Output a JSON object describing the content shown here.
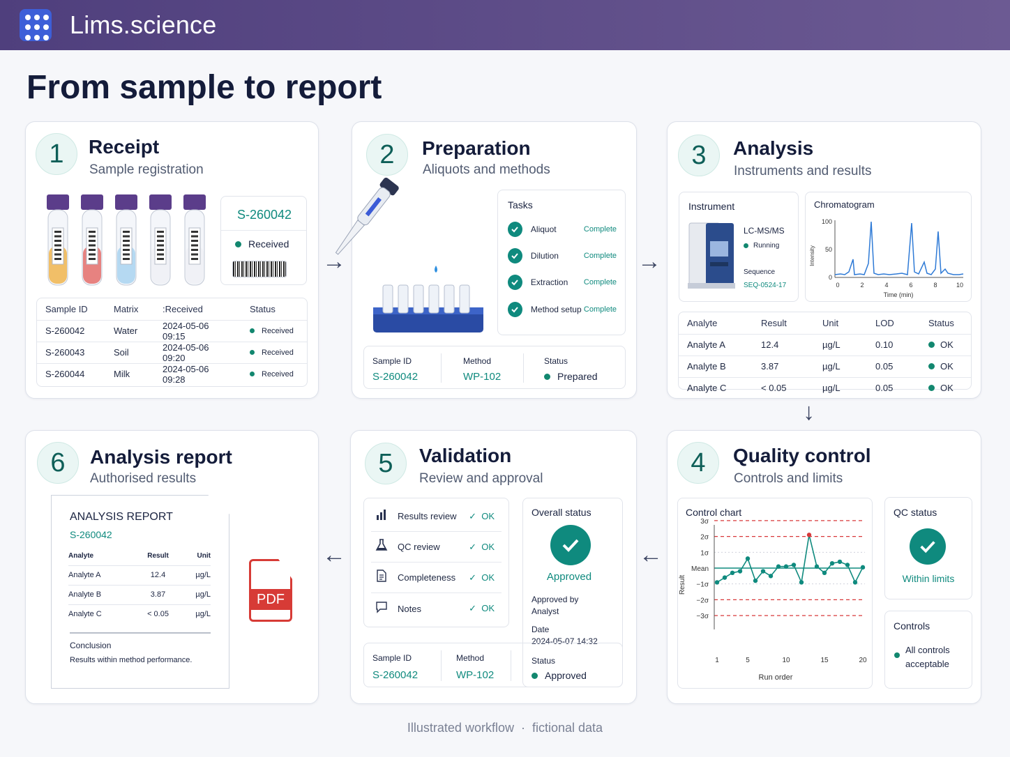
{
  "app": {
    "title": "Lims.science",
    "icon": "grid-icon"
  },
  "page": {
    "title": "From sample to report"
  },
  "receipt": {
    "num": "1",
    "title": "Receipt",
    "subtitle": "Sample registration",
    "tag": {
      "id": "S-260042",
      "status": "Received"
    },
    "tube_colors": [
      "#f0b54d",
      "#e46d6a",
      "#a9d3f0",
      "#eef0f4",
      "#eef0f4"
    ],
    "table": {
      "headers": [
        "Sample ID",
        "Matrix",
        ":Received",
        "Status"
      ],
      "rows": [
        [
          "S-260042",
          "Water",
          "2024-05-06 09:15",
          "Received"
        ],
        [
          "S-260043",
          "Soil",
          "2024-05-06 09:20",
          "Received"
        ],
        [
          "S-260044",
          "Milk",
          "2024-05-06 09:28",
          "Received"
        ]
      ]
    }
  },
  "preparation": {
    "num": "2",
    "title": "Preparation",
    "subtitle": "Aliquots and methods",
    "tasks_title": "Tasks",
    "tasks": [
      {
        "label": "Aliquot",
        "status": "Complete"
      },
      {
        "label": "Dilution",
        "status": "Complete"
      },
      {
        "label": "Extraction",
        "status": "Complete"
      },
      {
        "label": "Method setup",
        "status": "Complete"
      }
    ],
    "info": {
      "sample_label": "Sample ID",
      "sample_value": "S-260042",
      "method_label": "Method",
      "method_value": "WP-102",
      "status_label": "Status",
      "status_value": "Prepared"
    }
  },
  "analysis": {
    "num": "3",
    "title": "Analysis",
    "subtitle": "Instruments and results",
    "instrument": {
      "title": "Instrument",
      "name": "LC-MS/MS",
      "state": "Running",
      "seq_label": "Sequence",
      "seq_value": "SEQ-0524-17"
    },
    "chromatogram": {
      "title": "Chromatogram",
      "ylabel": "Intensity",
      "xlabel": "Time (min)",
      "yticks": [
        "100",
        "50",
        "0"
      ],
      "xticks": [
        "0",
        "2",
        "4",
        "6",
        "8",
        "10"
      ]
    },
    "table": {
      "headers": [
        "Analyte",
        "Result",
        "Unit",
        "LOD",
        "Status"
      ],
      "rows": [
        [
          "Analyte A",
          "12.4",
          "µg/L",
          "0.10",
          "OK"
        ],
        [
          "Analyte B",
          "3.87",
          "µg/L",
          "0.05",
          "OK"
        ],
        [
          "Analyte C",
          "< 0.05",
          "µg/L",
          "0.05",
          "OK"
        ]
      ]
    }
  },
  "qc": {
    "num": "4",
    "title": "Quality control",
    "subtitle": "Controls and limits",
    "chart": {
      "title": "Control chart",
      "ylabel": "Result",
      "xlabel": "Run order",
      "yticks": [
        "3σ",
        "2σ",
        "1σ",
        "Mean",
        "−1σ",
        "−2σ",
        "−3σ"
      ],
      "xticks": [
        "1",
        "5",
        "10",
        "15",
        "20"
      ],
      "values": [
        -0.9,
        -0.6,
        -0.3,
        -0.2,
        0.6,
        -0.8,
        -0.2,
        -0.5,
        0.1,
        0.1,
        0.2,
        -0.9,
        2.1,
        0.1,
        -0.3,
        0.3,
        0.4,
        0.2,
        -0.9,
        0.05
      ],
      "out_of_control_index": 12
    },
    "status": {
      "title": "QC status",
      "value": "Within limits"
    },
    "controls": {
      "title": "Controls",
      "value": "All controls acceptable"
    }
  },
  "validation": {
    "num": "5",
    "title": "Validation",
    "subtitle": "Review and approval",
    "checks": [
      {
        "icon": "bar-chart-icon",
        "glyph": "▁▃▅",
        "label": "Results review",
        "status": "OK"
      },
      {
        "icon": "flask-icon",
        "glyph": "⚗",
        "label": "QC review",
        "status": "OK"
      },
      {
        "icon": "document-icon",
        "glyph": "▤",
        "label": "Completeness",
        "status": "OK"
      },
      {
        "icon": "comment-icon",
        "glyph": "▭",
        "label": "Notes",
        "status": "OK"
      }
    ],
    "overall": {
      "title": "Overall status",
      "value": "Approved",
      "by_label": "Approved by",
      "by_value": "Analyst",
      "date_label": "Date",
      "date_value": "2024-05-07 14:32"
    },
    "info": {
      "sample_label": "Sample ID",
      "sample_value": "S-260042",
      "method_label": "Method",
      "method_value": "WP-102",
      "status_label": "Status",
      "status_value": "Approved"
    }
  },
  "report": {
    "num": "6",
    "title": "Analysis report",
    "subtitle": "Authorised results",
    "doc": {
      "title": "ANALYSIS REPORT",
      "sample": "S-260042",
      "headers": [
        "Analyte",
        "Result",
        "Unit"
      ],
      "rows": [
        [
          "Analyte A",
          "12.4",
          "µg/L"
        ],
        [
          "Analyte B",
          "3.87",
          "µg/L"
        ],
        [
          "Analyte C",
          "< 0.05",
          "µg/L"
        ]
      ],
      "conclusion_title": "Conclusion",
      "conclusion_text": "Results within method performance."
    },
    "pdf_label": "PDF"
  },
  "footer": {
    "left": "Illustrated workflow",
    "sep": "·",
    "right": "fictional data"
  },
  "colors": {
    "accent": "#0f8a7e",
    "header": "#55457f",
    "alert": "#d8383a",
    "pdf": "#d73b36"
  }
}
